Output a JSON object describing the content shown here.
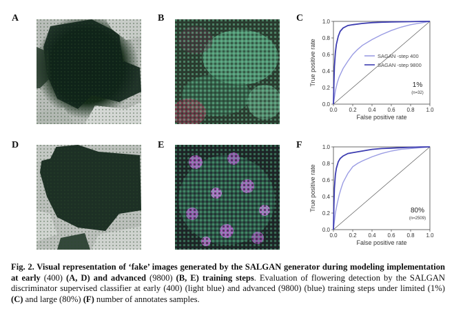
{
  "panels": {
    "A": "A",
    "B": "B",
    "C": "C",
    "D": "D",
    "E": "E",
    "F": "F"
  },
  "colors": {
    "light_blue": "#9a9ce3",
    "dark_blue": "#3c3cb0",
    "diagonal": "#555555"
  },
  "chart_data": [
    {
      "panel": "C",
      "type": "line",
      "xlabel": "False positive rate",
      "ylabel": "True positive rate",
      "xlim": [
        0,
        1
      ],
      "ylim": [
        0,
        1
      ],
      "xticks": [
        "0.0",
        "0.2",
        "0.4",
        "0.6",
        "0.8",
        "1.0"
      ],
      "yticks": [
        "0.0",
        "0.2",
        "0.4",
        "0.6",
        "0.8",
        "1.0"
      ],
      "legend": "center-right",
      "annotation": "1%",
      "annotation_n": "(n=32)",
      "series": [
        {
          "name": "SAGAN -step 400",
          "color": "#9a9ce3",
          "x": [
            0,
            0.01,
            0.02,
            0.04,
            0.06,
            0.08,
            0.1,
            0.15,
            0.2,
            0.25,
            0.3,
            0.4,
            0.5,
            0.6,
            0.7,
            0.8,
            0.9,
            1.0
          ],
          "y": [
            0,
            0.08,
            0.16,
            0.26,
            0.33,
            0.38,
            0.43,
            0.52,
            0.6,
            0.66,
            0.71,
            0.78,
            0.84,
            0.89,
            0.93,
            0.96,
            0.98,
            1.0
          ]
        },
        {
          "name": "SAGAN -step 9800",
          "color": "#3c3cb0",
          "x": [
            0,
            0.005,
            0.01,
            0.02,
            0.03,
            0.05,
            0.07,
            0.1,
            0.15,
            0.2,
            0.3,
            0.4,
            0.5,
            0.6,
            0.7,
            0.8,
            0.9,
            1.0
          ],
          "y": [
            0,
            0.25,
            0.45,
            0.62,
            0.72,
            0.82,
            0.88,
            0.92,
            0.95,
            0.96,
            0.975,
            0.985,
            0.99,
            0.993,
            0.995,
            0.997,
            0.999,
            1.0
          ]
        }
      ]
    },
    {
      "panel": "F",
      "type": "line",
      "xlabel": "False positive rate",
      "ylabel": "True positive rate",
      "xlim": [
        0,
        1
      ],
      "ylim": [
        0,
        1
      ],
      "xticks": [
        "0.0",
        "0.2",
        "0.4",
        "0.6",
        "0.8",
        "1.0"
      ],
      "yticks": [
        "0.0",
        "0.2",
        "0.4",
        "0.6",
        "0.8",
        "1.0"
      ],
      "annotation": "80%",
      "annotation_n": "(n=2509)",
      "series": [
        {
          "name": "",
          "color": "#9a9ce3",
          "x": [
            0,
            0.01,
            0.02,
            0.04,
            0.06,
            0.08,
            0.1,
            0.15,
            0.2,
            0.25,
            0.3,
            0.4,
            0.5,
            0.6,
            0.7,
            0.8,
            0.9,
            1.0
          ],
          "y": [
            0,
            0.1,
            0.2,
            0.32,
            0.42,
            0.5,
            0.57,
            0.68,
            0.76,
            0.8,
            0.83,
            0.88,
            0.92,
            0.95,
            0.97,
            0.98,
            0.99,
            1.0
          ]
        },
        {
          "name": "",
          "color": "#3c3cb0",
          "x": [
            0,
            0.005,
            0.01,
            0.02,
            0.03,
            0.05,
            0.07,
            0.1,
            0.15,
            0.2,
            0.3,
            0.4,
            0.5,
            0.6,
            0.7,
            0.8,
            0.9,
            1.0
          ],
          "y": [
            0,
            0.3,
            0.5,
            0.66,
            0.74,
            0.82,
            0.86,
            0.89,
            0.92,
            0.93,
            0.95,
            0.97,
            0.98,
            0.985,
            0.99,
            0.995,
            0.998,
            1.0
          ]
        }
      ]
    }
  ],
  "caption": {
    "fig_label": "Fig. 2.",
    "bold_1": " Visual representation of ‘fake’ images generated by the SALGAN generator during modeling implementation at early ",
    "early_val": "(400)",
    "bold_2": " (A, D) ",
    "bold_3": "and advanced ",
    "advanced_val": "(9800)",
    "bold_4": " (B, E) training steps",
    "period": ".",
    "line_2a": " Evaluation of flowering detection by the SALGAN discriminator supervised classifier at early (400) (light blue) and advanced (9800) (blue) training steps under limited (1%) ",
    "c_ref": "(C)",
    "line_2b": " and large (80%) ",
    "f_ref": "(F)",
    "line_2c": " number of annotates samples."
  }
}
